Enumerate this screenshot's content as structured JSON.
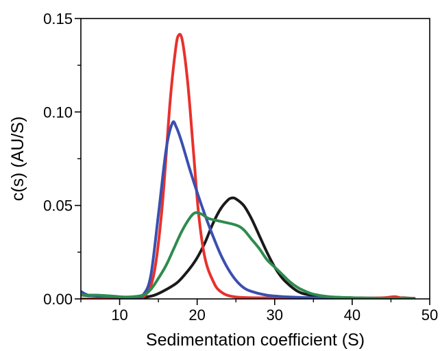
{
  "chart_data": {
    "type": "line",
    "title": "",
    "xlabel": "Sedimentation coefficient (S)",
    "ylabel": "c(s) (AU/S)",
    "xlim": [
      5,
      50
    ],
    "ylim": [
      0,
      0.15
    ],
    "x_ticks": [
      "10",
      "20",
      "30",
      "40",
      "50"
    ],
    "y_ticks": [
      "0.00",
      "0.05",
      "0.10",
      "0.15"
    ],
    "grid": false,
    "legend": "none",
    "series": [
      {
        "color": "#1a1a1a",
        "points": [
          [
            5,
            0.002
          ],
          [
            7,
            0.0015
          ],
          [
            9,
            0.001
          ],
          [
            11,
            0.0005
          ],
          [
            13,
            0.0008
          ],
          [
            14.5,
            0.002
          ],
          [
            16,
            0.005
          ],
          [
            17.5,
            0.009
          ],
          [
            19,
            0.016
          ],
          [
            20,
            0.022
          ],
          [
            21,
            0.03
          ],
          [
            22,
            0.04
          ],
          [
            23,
            0.048
          ],
          [
            24,
            0.053
          ],
          [
            24.5,
            0.054
          ],
          [
            25,
            0.0535
          ],
          [
            26,
            0.05
          ],
          [
            27,
            0.043
          ],
          [
            28,
            0.034
          ],
          [
            29,
            0.025
          ],
          [
            30,
            0.017
          ],
          [
            31,
            0.011
          ],
          [
            32,
            0.007
          ],
          [
            33,
            0.004
          ],
          [
            34,
            0.0025
          ],
          [
            36,
            0.0012
          ],
          [
            40,
            0.0006
          ],
          [
            44,
            0.0004
          ],
          [
            46,
            0.0006
          ],
          [
            48,
            0.0003
          ]
        ]
      },
      {
        "color": "#e8312c",
        "points": [
          [
            5,
            0.0
          ],
          [
            8,
            0.0
          ],
          [
            11,
            0.0
          ],
          [
            12.5,
            0.0005
          ],
          [
            13.5,
            0.003
          ],
          [
            14.5,
            0.015
          ],
          [
            15.5,
            0.05
          ],
          [
            16.5,
            0.105
          ],
          [
            17.2,
            0.133
          ],
          [
            17.6,
            0.141
          ],
          [
            18.1,
            0.138
          ],
          [
            18.8,
            0.115
          ],
          [
            19.5,
            0.08
          ],
          [
            20.2,
            0.045
          ],
          [
            21,
            0.022
          ],
          [
            22,
            0.01
          ],
          [
            23,
            0.004
          ],
          [
            25,
            0.001
          ],
          [
            30,
            0.0005
          ],
          [
            35,
            0.0003
          ],
          [
            40,
            0.0003
          ],
          [
            44,
            0.0006
          ],
          [
            45.5,
            0.0012
          ],
          [
            46.5,
            0.0004
          ],
          [
            48,
            0.0003
          ]
        ]
      },
      {
        "color": "#3a4fb0",
        "points": [
          [
            5,
            0.004
          ],
          [
            6,
            0.002
          ],
          [
            8,
            0.0015
          ],
          [
            10,
            0.001
          ],
          [
            12,
            0.001
          ],
          [
            13,
            0.002
          ],
          [
            14,
            0.012
          ],
          [
            15,
            0.045
          ],
          [
            16,
            0.08
          ],
          [
            16.8,
            0.094
          ],
          [
            17.3,
            0.092
          ],
          [
            18,
            0.084
          ],
          [
            19,
            0.07
          ],
          [
            20,
            0.057
          ],
          [
            21,
            0.045
          ],
          [
            22,
            0.034
          ],
          [
            23,
            0.024
          ],
          [
            24,
            0.016
          ],
          [
            25,
            0.01
          ],
          [
            26,
            0.006
          ],
          [
            27,
            0.004
          ],
          [
            29,
            0.002
          ],
          [
            32,
            0.001
          ],
          [
            36,
            0.0005
          ],
          [
            40,
            0.0003
          ],
          [
            46,
            0.0002
          ]
        ]
      },
      {
        "color": "#2e8b4e",
        "points": [
          [
            5,
            0.002
          ],
          [
            7,
            0.002
          ],
          [
            9,
            0.0015
          ],
          [
            11,
            0.001
          ],
          [
            13,
            0.002
          ],
          [
            14,
            0.005
          ],
          [
            15,
            0.011
          ],
          [
            16,
            0.018
          ],
          [
            17,
            0.027
          ],
          [
            18,
            0.036
          ],
          [
            19,
            0.043
          ],
          [
            19.7,
            0.046
          ],
          [
            20.5,
            0.0455
          ],
          [
            21.5,
            0.043
          ],
          [
            23,
            0.0415
          ],
          [
            25,
            0.0395
          ],
          [
            26,
            0.037
          ],
          [
            27,
            0.032
          ],
          [
            28,
            0.027
          ],
          [
            29,
            0.021
          ],
          [
            30,
            0.017
          ],
          [
            31,
            0.013
          ],
          [
            32,
            0.009
          ],
          [
            33,
            0.006
          ],
          [
            34,
            0.004
          ],
          [
            35,
            0.0025
          ],
          [
            37,
            0.0012
          ],
          [
            40,
            0.0006
          ],
          [
            44,
            0.0003
          ],
          [
            48,
            0.0001
          ]
        ]
      }
    ]
  }
}
